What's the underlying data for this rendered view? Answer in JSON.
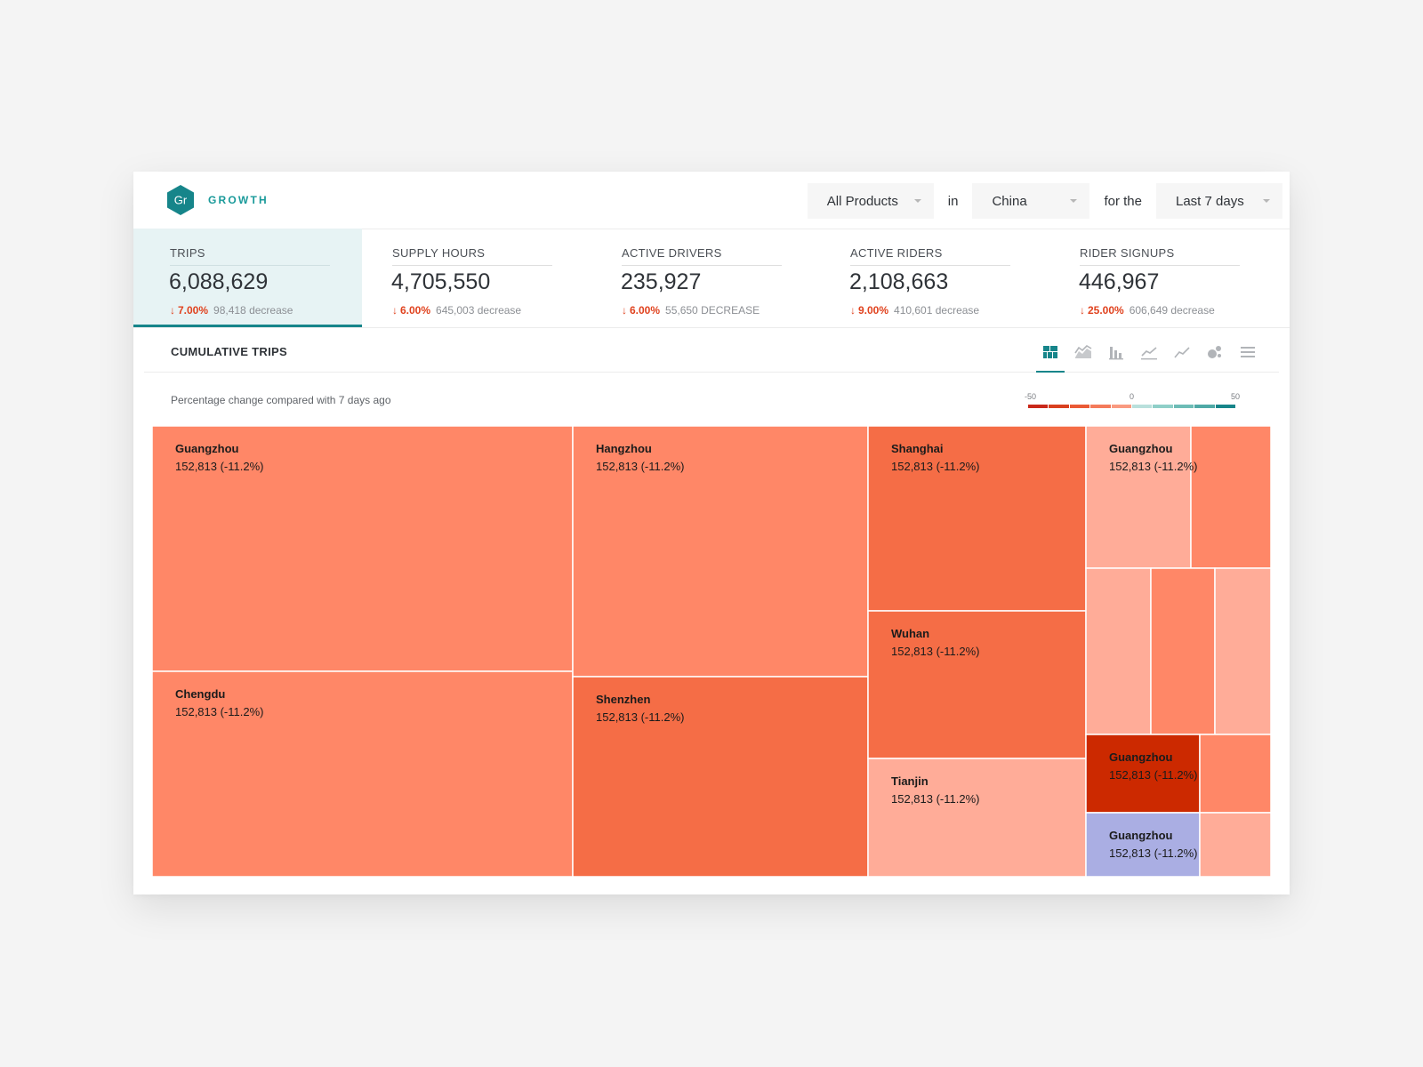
{
  "header": {
    "logo_text": "Gr",
    "brand": "GROWTH",
    "filters": {
      "product": "All Products",
      "in_label": "in",
      "country": "China",
      "for_label": "for the",
      "period": "Last 7 days"
    }
  },
  "metrics": [
    {
      "label": "TRIPS",
      "value": "6,088,629",
      "pct": "7.00%",
      "abs": "98,418 decrease",
      "active": true
    },
    {
      "label": "SUPPLY HOURS",
      "value": "4,705,550",
      "pct": "6.00%",
      "abs": "645,003 decrease"
    },
    {
      "label": "ACTIVE DRIVERS",
      "value": "235,927",
      "pct": "6.00%",
      "abs": "55,650 DECREASE"
    },
    {
      "label": "ACTIVE RIDERS",
      "value": "2,108,663",
      "pct": "9.00%",
      "abs": "410,601 decrease"
    },
    {
      "label": "RIDER SIGNUPS",
      "value": "446,967",
      "pct": "25.00%",
      "abs": "606,649 decrease"
    }
  ],
  "chart_section": {
    "title": "CUMULATIVE TRIPS",
    "subtitle": "Percentage change compared with 7 days ago",
    "view_icons": [
      "treemap-icon",
      "area-chart-icon",
      "bar-chart-icon",
      "line-chart-icon",
      "trend-line-icon",
      "bubble-chart-icon",
      "table-view-icon"
    ],
    "active_view": "treemap-icon"
  },
  "legend": {
    "min_label": "-50",
    "mid_label": "0",
    "max_label": "50",
    "colors": [
      "#c9281a",
      "#d9401f",
      "#ea5a35",
      "#f47a5a",
      "#f99a80",
      "#b9e0dc",
      "#8fcfc8",
      "#6dbcb6",
      "#4fa9a6",
      "#16858a"
    ]
  },
  "colors": {
    "accent": "#16858a",
    "negative": "#e0421e"
  },
  "chart_data": {
    "type": "treemap",
    "title": "CUMULATIVE TRIPS",
    "color_scale": [
      -50,
      50
    ],
    "cells": [
      {
        "name": "Guangzhou",
        "label": "152,813 (-11.2%)",
        "color": "#ff8767"
      },
      {
        "name": "Chengdu",
        "label": "152,813 (-11.2%)",
        "color": "#ff8767"
      },
      {
        "name": "Hangzhou",
        "label": "152,813 (-11.2%)",
        "color": "#ff8767"
      },
      {
        "name": "Shenzhen",
        "label": "152,813 (-11.2%)",
        "color": "#f56d46"
      },
      {
        "name": "Shanghai",
        "label": "152,813 (-11.2%)",
        "color": "#f56d46"
      },
      {
        "name": "Wuhan",
        "label": "152,813 (-11.2%)",
        "color": "#f56d46"
      },
      {
        "name": "Tianjin",
        "label": "152,813 (-11.2%)",
        "color": "#ffac98"
      },
      {
        "name": "Guangzhou",
        "label": "152,813 (-11.2%)",
        "color": "#ffac98"
      },
      {
        "name": "",
        "label": "",
        "color": "#ff8767"
      },
      {
        "name": "",
        "label": "",
        "color": "#ffac98"
      },
      {
        "name": "",
        "label": "",
        "color": "#ff8767"
      },
      {
        "name": "",
        "label": "",
        "color": "#ffac98"
      },
      {
        "name": "Guangzhou",
        "label": "152,813 (-11.2%)",
        "color": "#cc2900"
      },
      {
        "name": "",
        "label": "",
        "color": "#ff8767"
      },
      {
        "name": "Guangzhou",
        "label": "152,813 (-11.2%)",
        "color": "#aaaee3"
      },
      {
        "name": "",
        "label": "",
        "color": "#ffac98"
      }
    ]
  }
}
